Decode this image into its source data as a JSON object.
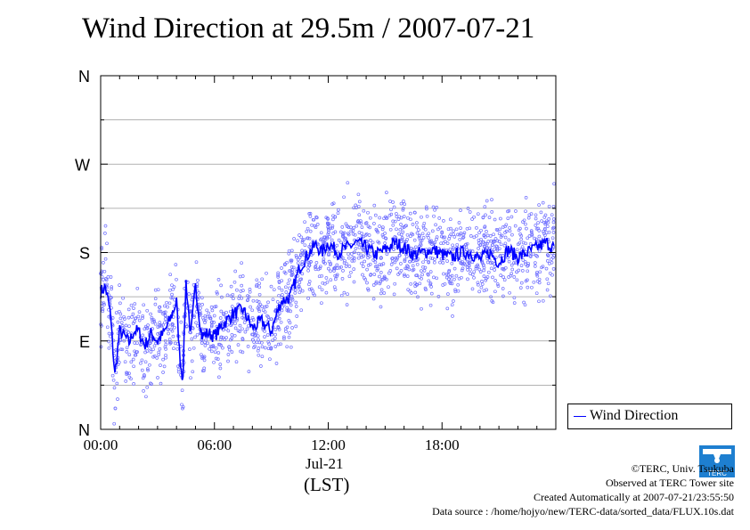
{
  "title": "Wind Direction at 29.5m / 2007-07-21",
  "legend": {
    "label": "Wind Direction"
  },
  "x_axis": {
    "date_label": "Jul-21",
    "unit_label": "(LST)"
  },
  "credits": {
    "line1": "©TERC, Univ. Tsukuba",
    "line2": "Observed at TERC Tower site",
    "line3": "Created Automatically at 2007-07-21/23:55:50",
    "line4": "Data source : /home/hojyo/new/TERC-data/sorted_data/FLUX.10s.dat"
  },
  "logo": {
    "icon": "terc-logo-icon",
    "text": "TERC"
  },
  "colors": {
    "series_line": "#0000ff",
    "series_points": "#6f6fff",
    "grid": "#9a9a9a"
  },
  "chart_data": {
    "type": "scatter",
    "title": "Wind Direction at 29.5m / 2007-07-21",
    "xlabel": "Jul-21 (LST)",
    "ylabel": "",
    "xlim": [
      "00:00",
      "24:00"
    ],
    "ylim": [
      0,
      360
    ],
    "y_ticks": [
      {
        "value": 0,
        "label": "N"
      },
      {
        "value": 90,
        "label": "E"
      },
      {
        "value": 180,
        "label": "S"
      },
      {
        "value": 270,
        "label": "W"
      },
      {
        "value": 360,
        "label": "N"
      }
    ],
    "x_ticks": [
      "00:00",
      "06:00",
      "12:00",
      "18:00"
    ],
    "grid": true,
    "legend_position": "right",
    "series": [
      {
        "name": "Wind Direction",
        "style": "line with scattered points",
        "x": [
          "00:00",
          "00:15",
          "00:30",
          "00:45",
          "01:00",
          "01:15",
          "01:30",
          "01:45",
          "02:00",
          "02:20",
          "02:40",
          "03:00",
          "03:20",
          "03:40",
          "04:00",
          "04:10",
          "04:20",
          "04:30",
          "04:45",
          "05:00",
          "05:20",
          "05:40",
          "06:00",
          "06:30",
          "07:00",
          "07:30",
          "08:00",
          "08:30",
          "09:00",
          "09:30",
          "10:00",
          "10:30",
          "11:00",
          "11:20",
          "11:40",
          "12:00",
          "12:30",
          "13:00",
          "13:30",
          "14:00",
          "14:30",
          "15:00",
          "15:30",
          "16:00",
          "16:30",
          "17:00",
          "17:30",
          "18:00",
          "18:30",
          "19:00",
          "19:30",
          "20:00",
          "20:30",
          "21:00",
          "21:30",
          "22:00",
          "22:30",
          "23:00",
          "23:30",
          "23:55"
        ],
        "y": [
          140,
          145,
          120,
          55,
          100,
          95,
          88,
          100,
          100,
          85,
          98,
          90,
          98,
          112,
          130,
          75,
          50,
          150,
          95,
          145,
          95,
          98,
          95,
          108,
          118,
          122,
          103,
          110,
          100,
          130,
          135,
          165,
          180,
          188,
          180,
          190,
          180,
          185,
          190,
          185,
          178,
          183,
          190,
          185,
          178,
          180,
          183,
          178,
          175,
          180,
          180,
          173,
          180,
          170,
          183,
          175,
          180,
          185,
          190,
          185
        ]
      }
    ]
  }
}
